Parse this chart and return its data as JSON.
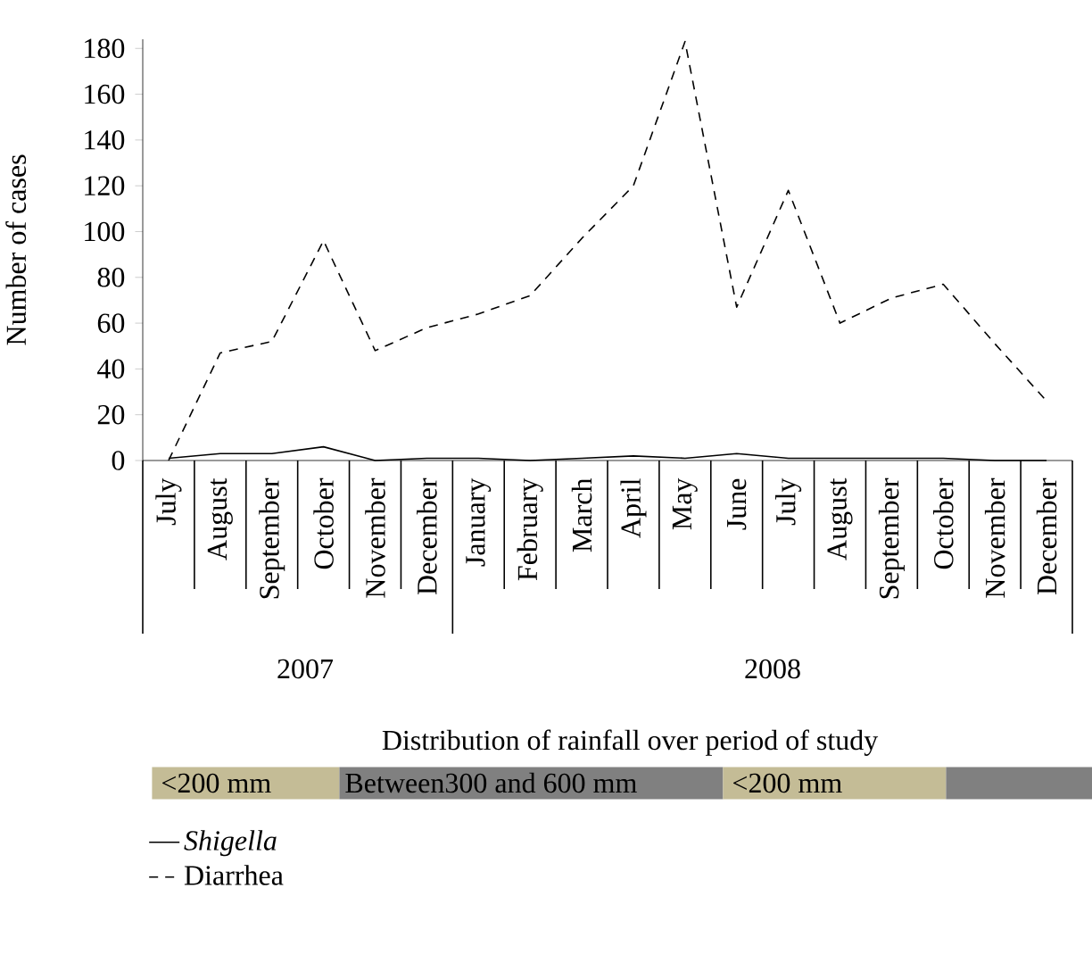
{
  "chart_data": {
    "type": "line",
    "ylabel": "Number of cases",
    "categories": [
      "July",
      "August",
      "September",
      "October",
      "November",
      "December",
      "January",
      "February",
      "March",
      "April",
      "May",
      "June",
      "July",
      "August",
      "September",
      "October",
      "November",
      "December"
    ],
    "series": [
      {
        "name": "*Shigella*",
        "color": "#000000",
        "line_style": "solid",
        "values": [
          1,
          3,
          3,
          6,
          0,
          1,
          1,
          0,
          1,
          2,
          1,
          3,
          1,
          1,
          1,
          1,
          0,
          0
        ]
      },
      {
        "name": "Diarrhea",
        "color": "#000000",
        "line_style": "dashed",
        "values": [
          0,
          47,
          52,
          96,
          48,
          58,
          64,
          72,
          97,
          120,
          183,
          67,
          118,
          60,
          71,
          77,
          51,
          26
        ]
      }
    ],
    "ylim": [
      0,
      184
    ],
    "yticks": [
      0,
      20,
      40,
      60,
      80,
      100,
      120,
      140,
      160,
      180
    ],
    "annotations": [
      "2007",
      "2008",
      "Distribution of rainfall over period of study",
      "<200 mm",
      "Between300 and 600 mm",
      "<200 mm"
    ],
    "legend": "bottom left",
    "marker": "none",
    "grid": false
  }
}
